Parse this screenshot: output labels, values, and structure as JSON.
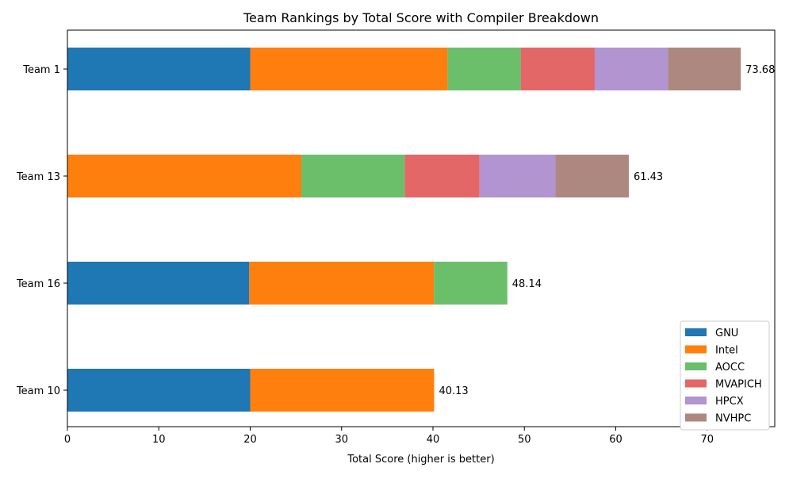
{
  "chart_data": {
    "type": "bar",
    "orientation": "horizontal",
    "stacked": true,
    "title": "Team Rankings by Total Score with Compiler Breakdown",
    "xlabel": "Total Score (higher is better)",
    "ylabel": "",
    "xlim": [
      0,
      77.4
    ],
    "x_ticks": [
      0,
      10,
      20,
      30,
      40,
      50,
      60,
      70
    ],
    "grid": false,
    "legend_position": "bottom-right",
    "categories": [
      "Team 1",
      "Team 13",
      "Team 16",
      "Team 10"
    ],
    "series": [
      {
        "name": "GNU",
        "color": "#1f77b4",
        "values": [
          20.0,
          0,
          19.9,
          20.0
        ]
      },
      {
        "name": "Intel",
        "color": "#ff7f0e",
        "values": [
          21.6,
          25.6,
          20.2,
          20.13
        ]
      },
      {
        "name": "AOCC",
        "color": "#6bbf6b",
        "values": [
          8.0,
          11.3,
          8.04,
          0
        ]
      },
      {
        "name": "MVAPICH",
        "color": "#e36767",
        "values": [
          8.1,
          8.2,
          0,
          0
        ]
      },
      {
        "name": "HPCX",
        "color": "#b294d0",
        "values": [
          8.0,
          8.3,
          0,
          0
        ]
      },
      {
        "name": "NVHPC",
        "color": "#ad8880",
        "values": [
          7.98,
          8.03,
          0,
          0
        ]
      }
    ],
    "totals": [
      "73.68",
      "61.43",
      "48.14",
      "40.13"
    ]
  }
}
